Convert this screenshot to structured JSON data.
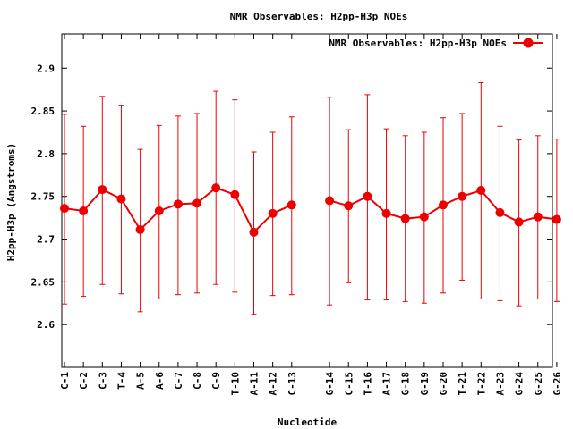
{
  "chart_data": {
    "type": "line",
    "title": "NMR Observables: H2pp-H3p NOEs",
    "xlabel": "Nucleotide",
    "ylabel": "H2pp-H3p (Angstroms)",
    "ylim": [
      2.55,
      2.94
    ],
    "yticks": [
      "2.6",
      "2.65",
      "2.7",
      "2.75",
      "2.8",
      "2.85",
      "2.9"
    ],
    "legend_position": "top-right",
    "grid": false,
    "color": "#ee0000",
    "series": [
      {
        "name": "NMR Observables: H2pp-H3p NOEs",
        "segments": [
          {
            "categories": [
              "C-1",
              "C-2",
              "C-3",
              "T-4",
              "A-5",
              "A-6",
              "C-7",
              "C-8",
              "C-9",
              "T-10",
              "A-11",
              "A-12",
              "C-13"
            ],
            "values": [
              2.736,
              2.733,
              2.758,
              2.747,
              2.711,
              2.733,
              2.741,
              2.742,
              2.76,
              2.752,
              2.708,
              2.73,
              2.74
            ],
            "err_low": [
              2.624,
              2.633,
              2.647,
              2.636,
              2.615,
              2.63,
              2.635,
              2.637,
              2.647,
              2.638,
              2.612,
              2.634,
              2.635
            ],
            "err_high": [
              2.846,
              2.832,
              2.867,
              2.856,
              2.805,
              2.833,
              2.844,
              2.847,
              2.873,
              2.863,
              2.802,
              2.825,
              2.843
            ]
          },
          {
            "categories": [
              "G-14",
              "C-15",
              "T-16",
              "A-17",
              "G-18",
              "G-19",
              "G-20",
              "T-21",
              "T-22",
              "A-23",
              "G-24",
              "G-25",
              "G-26"
            ],
            "values": [
              2.745,
              2.739,
              2.75,
              2.73,
              2.724,
              2.726,
              2.74,
              2.75,
              2.757,
              2.731,
              2.72,
              2.726,
              2.723
            ],
            "err_low": [
              2.623,
              2.649,
              2.629,
              2.629,
              2.627,
              2.625,
              2.637,
              2.652,
              2.63,
              2.628,
              2.622,
              2.63,
              2.627
            ],
            "err_high": [
              2.866,
              2.828,
              2.869,
              2.829,
              2.821,
              2.825,
              2.842,
              2.847,
              2.883,
              2.832,
              2.816,
              2.821,
              2.817
            ]
          }
        ]
      }
    ]
  }
}
